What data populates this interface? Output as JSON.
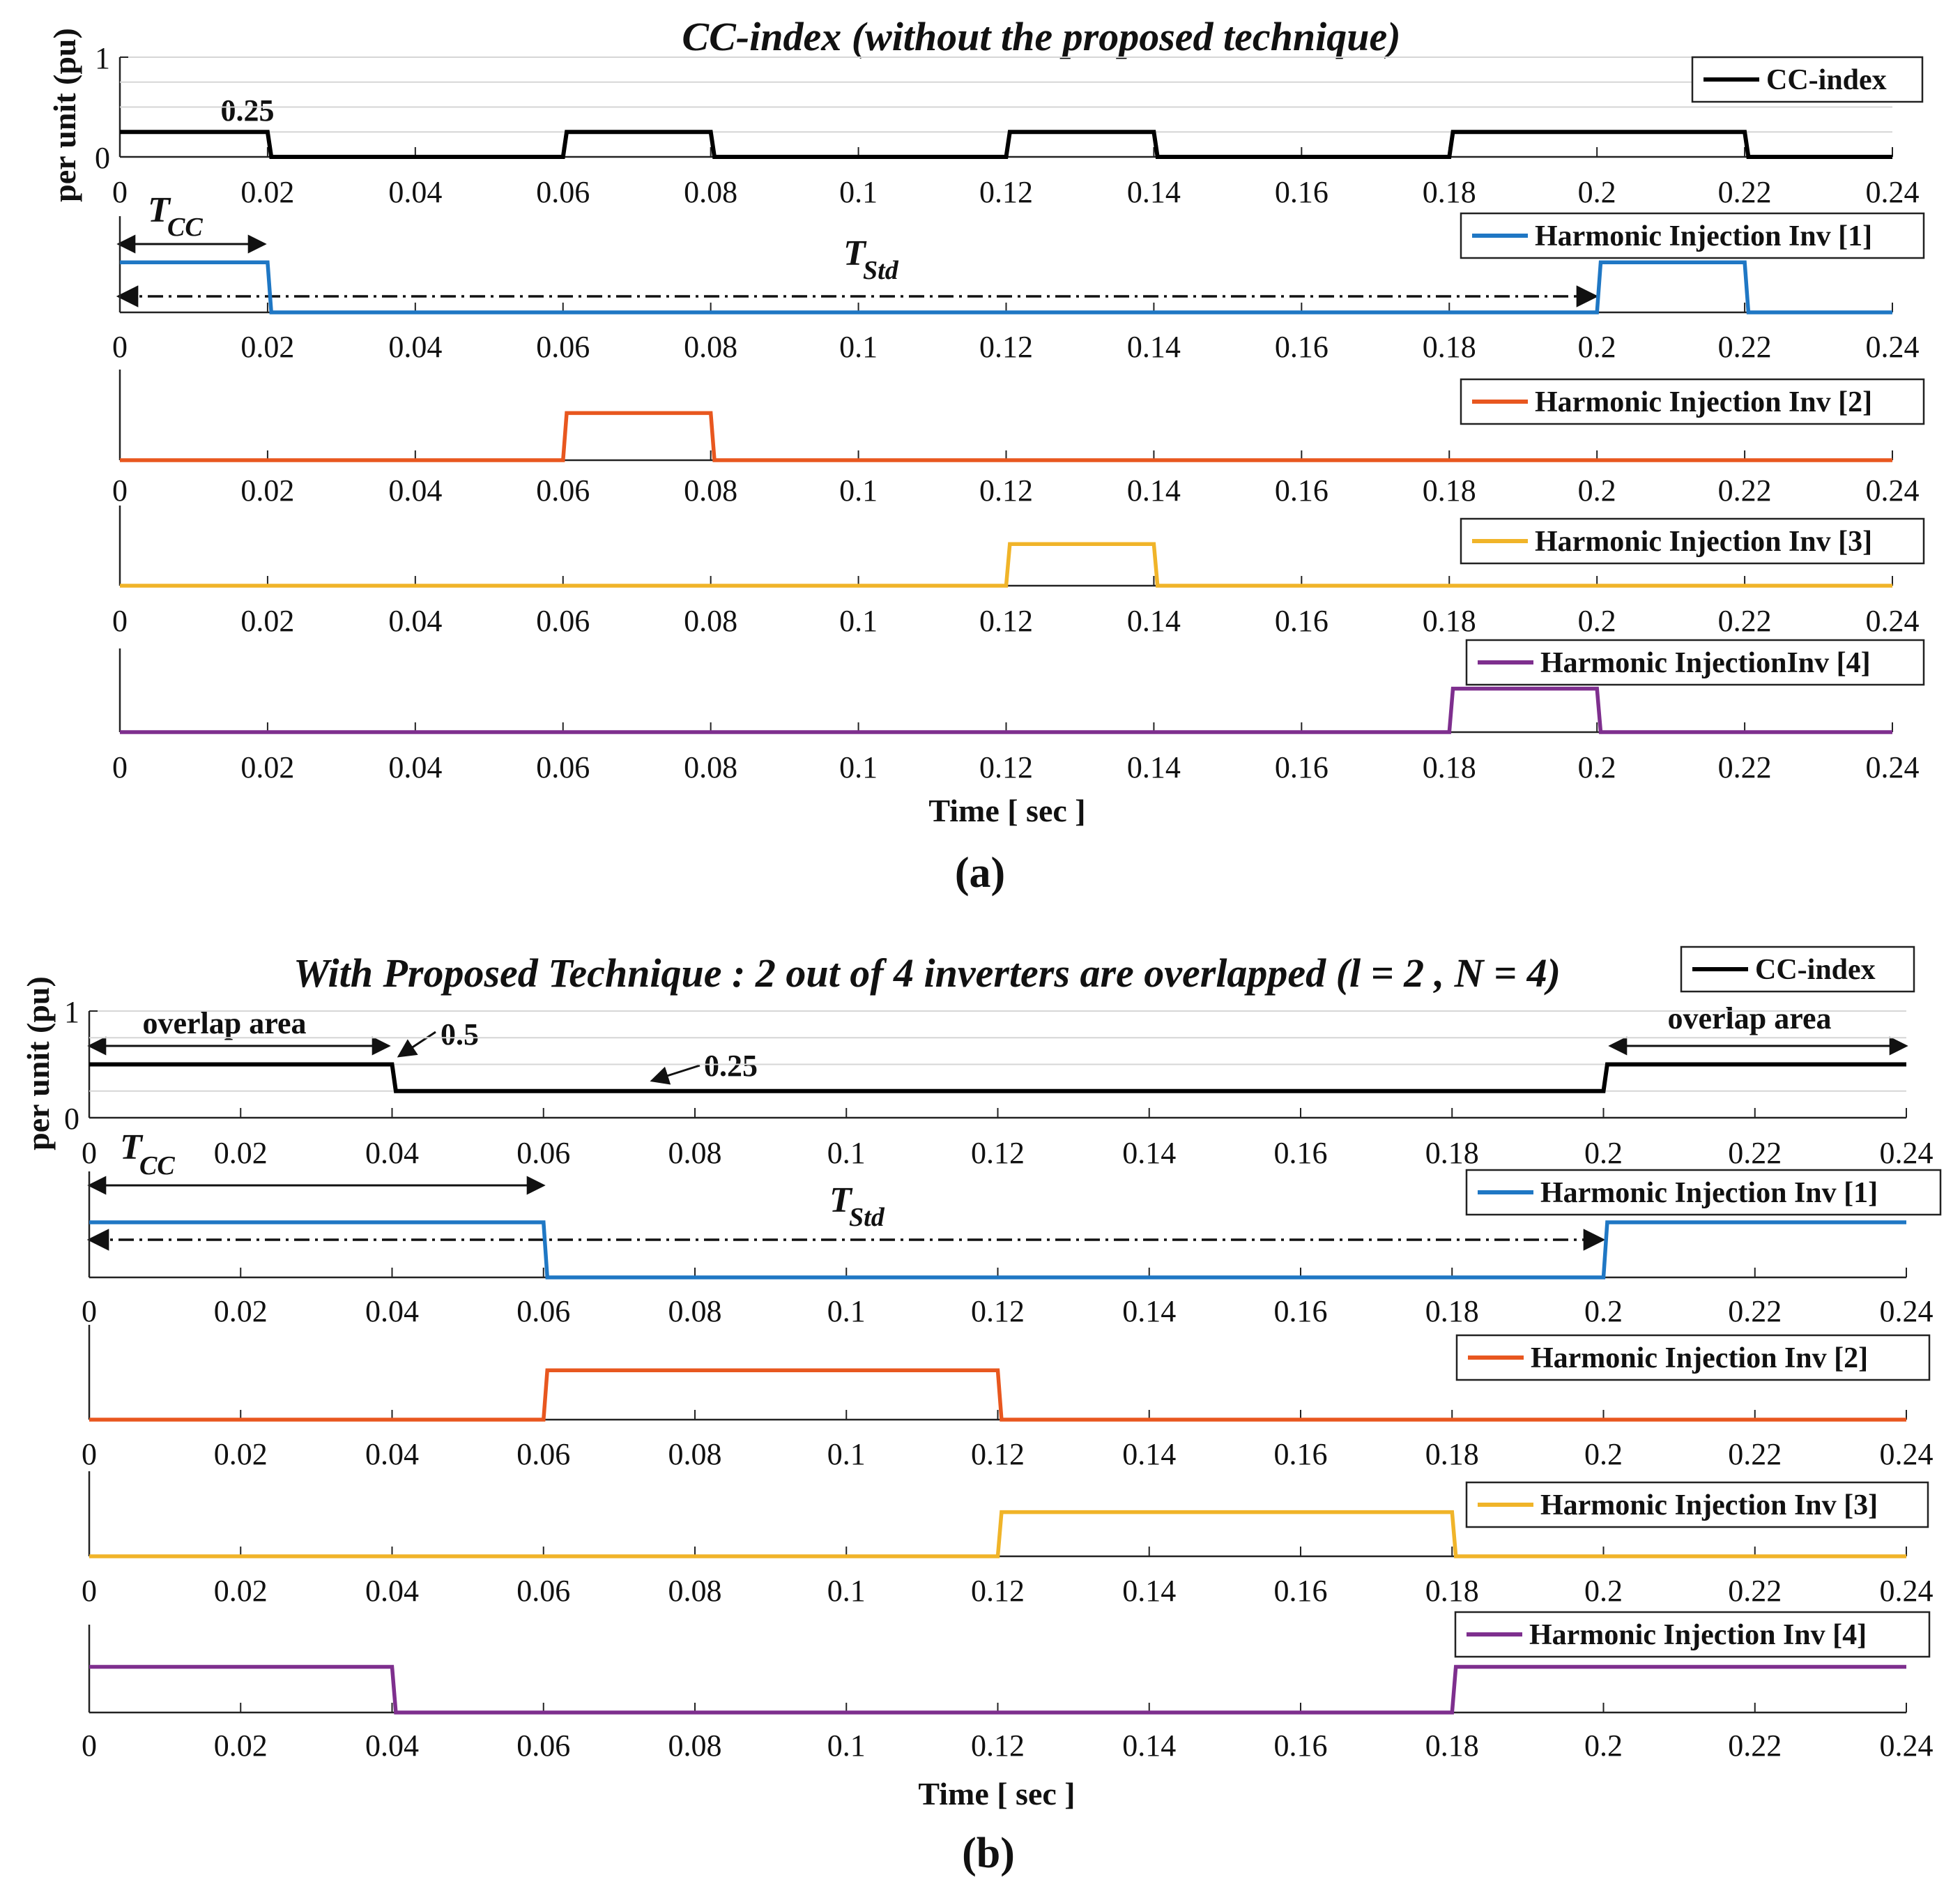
{
  "figure": {
    "xlabel": "Time [ sec ]",
    "ylabel": "per unit (pu)",
    "x_ticks": [
      "0",
      "0.02",
      "0.04",
      "0.06",
      "0.08",
      "0.1",
      "0.12",
      "0.14",
      "0.16",
      "0.18",
      "0.2",
      "0.22",
      "0.24"
    ],
    "xlim": [
      0,
      0.24
    ],
    "y_ticks": [
      "0",
      "1"
    ]
  },
  "panels": [
    {
      "id": "a",
      "label": "(a)",
      "title": "CC-index (without the proposed technique)",
      "annotations": {
        "cc_value": "0.25",
        "tcc_symbol": "T",
        "tcc_sub": "CC",
        "tstd_symbol": "T",
        "tstd_sub": "Std"
      }
    },
    {
      "id": "b",
      "label": "(b)",
      "title": "With Proposed Technique : 2 out of 4 inverters are overlapped (l = 2 , N = 4)",
      "annotations": {
        "overlap_left": "overlap area",
        "overlap_right": "overlap area",
        "value_high": "0.5",
        "value_low": "0.25",
        "tcc_symbol": "T",
        "tcc_sub": "CC",
        "tstd_symbol": "T",
        "tstd_sub": "Std"
      }
    }
  ],
  "chart_data": [
    {
      "type": "line",
      "title": "CC-index (without the proposed technique)",
      "xlabel": "Time [ sec ]",
      "ylabel": "per unit (pu)",
      "xlim": [
        0,
        0.24
      ],
      "ylim": [
        0,
        1
      ],
      "series": [
        {
          "name": "CC-index",
          "color": "#000000",
          "x": [
            0,
            0.02,
            0.0205,
            0.06,
            0.0605,
            0.08,
            0.0805,
            0.12,
            0.1205,
            0.14,
            0.1405,
            0.18,
            0.1805,
            0.22,
            0.2205,
            0.24
          ],
          "y": [
            0.25,
            0.25,
            0,
            0,
            0.25,
            0.25,
            0,
            0,
            0.25,
            0.25,
            0,
            0,
            0.25,
            0.25,
            0,
            0
          ]
        },
        {
          "name": "Harmonic Injection Inv [1]",
          "color": "#1f77c4",
          "x": [
            0,
            0.02,
            0.0205,
            0.2,
            0.2005,
            0.22,
            0.2205,
            0.24
          ],
          "y": [
            1,
            1,
            0,
            0,
            1,
            1,
            0,
            0
          ]
        },
        {
          "name": "Harmonic Injection Inv [2]",
          "color": "#e8571f",
          "x": [
            0,
            0.06,
            0.0605,
            0.08,
            0.0805,
            0.24
          ],
          "y": [
            0,
            0,
            1,
            1,
            0,
            0
          ]
        },
        {
          "name": "Harmonic Injection Inv [3]",
          "color": "#f0b429",
          "x": [
            0,
            0.12,
            0.1205,
            0.14,
            0.1405,
            0.24
          ],
          "y": [
            0,
            0,
            1,
            1,
            0,
            0
          ]
        },
        {
          "name": "Harmonic InjectionInv [4]",
          "color": "#7e2f8e",
          "x": [
            0,
            0.18,
            0.1805,
            0.2,
            0.2005,
            0.24
          ],
          "y": [
            0,
            0,
            1,
            1,
            0,
            0
          ]
        }
      ]
    },
    {
      "type": "line",
      "title": "With Proposed Technique : 2 out of 4 inverters are overlapped (l = 2 , N = 4)",
      "xlabel": "Time [ sec ]",
      "ylabel": "per unit (pu)",
      "xlim": [
        0,
        0.24
      ],
      "ylim": [
        0,
        1
      ],
      "series": [
        {
          "name": "CC-index",
          "color": "#000000",
          "x": [
            0,
            0.04,
            0.0405,
            0.2,
            0.2005,
            0.24
          ],
          "y": [
            0.5,
            0.5,
            0.25,
            0.25,
            0.5,
            0.5
          ]
        },
        {
          "name": "Harmonic Injection Inv [1]",
          "color": "#1f77c4",
          "x": [
            0,
            0.06,
            0.0605,
            0.2,
            0.2005,
            0.24
          ],
          "y": [
            1,
            1,
            0,
            0,
            1,
            1
          ]
        },
        {
          "name": "Harmonic Injection Inv [2]",
          "color": "#e8571f",
          "x": [
            0,
            0.06,
            0.0605,
            0.12,
            0.1205,
            0.24
          ],
          "y": [
            0,
            0,
            1,
            1,
            0,
            0
          ]
        },
        {
          "name": "Harmonic Injection Inv [3]",
          "color": "#f0b429",
          "x": [
            0,
            0.12,
            0.1205,
            0.18,
            0.1805,
            0.24
          ],
          "y": [
            0,
            0,
            1,
            1,
            0,
            0
          ]
        },
        {
          "name": "Harmonic Injection Inv [4]",
          "color": "#7e2f8e",
          "x": [
            0,
            0.04,
            0.0405,
            0.18,
            0.1805,
            0.24
          ],
          "y": [
            1,
            1,
            0,
            0,
            1,
            1
          ]
        }
      ]
    }
  ]
}
